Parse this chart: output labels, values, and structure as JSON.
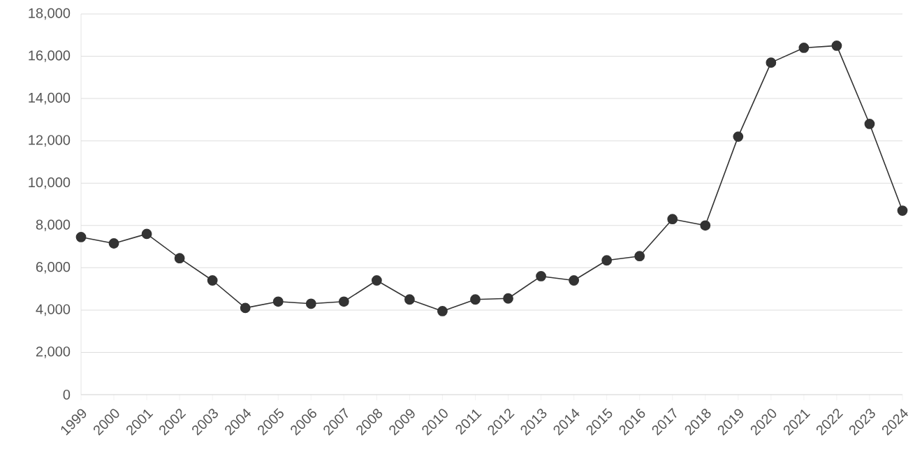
{
  "chart_data": {
    "type": "line",
    "categories": [
      "1999",
      "2000",
      "2001",
      "2002",
      "2003",
      "2004",
      "2005",
      "2006",
      "2007",
      "2008",
      "2009",
      "2010",
      "2011",
      "2012",
      "2013",
      "2014",
      "2015",
      "2016",
      "2017",
      "2018",
      "2019",
      "2020",
      "2021",
      "2022",
      "2023",
      "2024"
    ],
    "series": [
      {
        "color": "#333333",
        "values": [
          7450,
          7150,
          7600,
          6450,
          5400,
          4100,
          4400,
          4300,
          4400,
          5400,
          4500,
          3950,
          4500,
          4550,
          5600,
          5400,
          6350,
          6550,
          8300,
          8000,
          12200,
          15700,
          16400,
          16500,
          12800,
          8700
        ]
      }
    ],
    "ylim": [
      0,
      18000
    ],
    "yticks": [
      {
        "value": 0,
        "label": "0"
      },
      {
        "value": 2000,
        "label": "2,000"
      },
      {
        "value": 4000,
        "label": "4,000"
      },
      {
        "value": 6000,
        "label": "6,000"
      },
      {
        "value": 8000,
        "label": "8,000"
      },
      {
        "value": 10000,
        "label": "10,000"
      },
      {
        "value": 12000,
        "label": "12,000"
      },
      {
        "value": 14000,
        "label": "14,000"
      },
      {
        "value": 16000,
        "label": "16,000"
      },
      {
        "value": 18000,
        "label": "18,000"
      }
    ],
    "grid": "y",
    "marker": "circle",
    "line_style": "solid"
  }
}
